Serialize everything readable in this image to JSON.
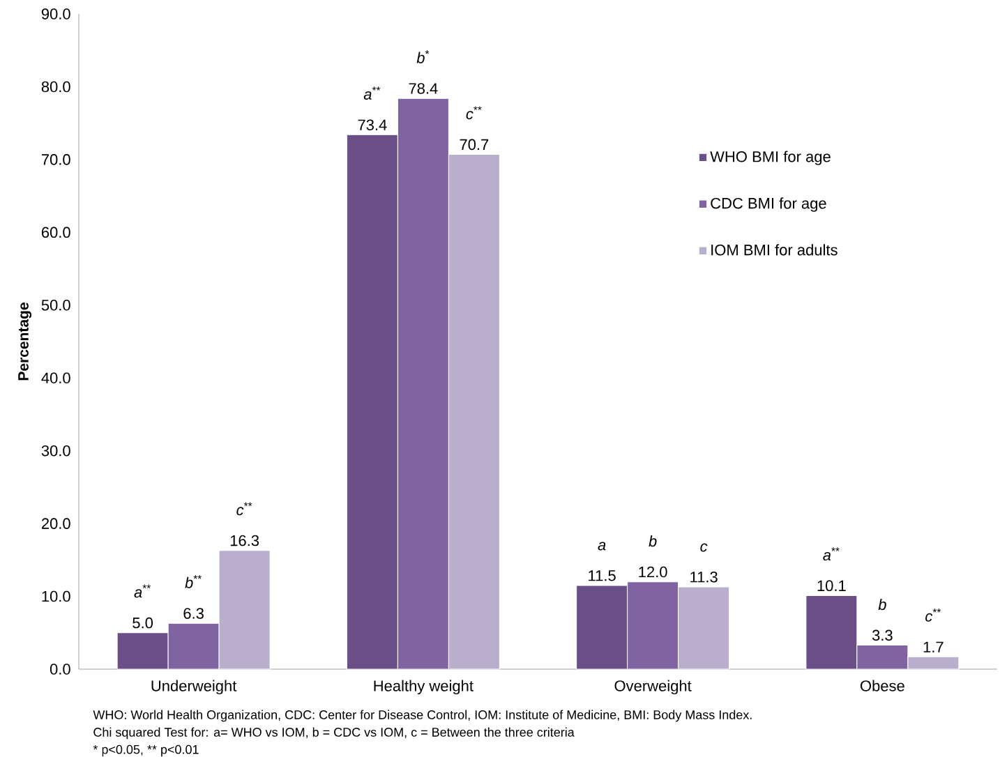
{
  "chart_data": {
    "type": "bar",
    "ylabel": "Percentage",
    "categories": [
      "Underweight",
      "Healthy weight",
      "Overweight",
      "Obese"
    ],
    "series": [
      {
        "name": "WHO BMI for age",
        "color": "#6b5088",
        "values": [
          5.0,
          73.4,
          11.5,
          10.1
        ],
        "value_labels": [
          "5.0",
          "73.4",
          "11.5",
          "10.1"
        ]
      },
      {
        "name": "CDC BMI for age",
        "color": "#8064a2",
        "values": [
          6.3,
          78.4,
          12.0,
          3.3
        ],
        "value_labels": [
          "6.3",
          "78.4",
          "12.0",
          "3.3"
        ]
      },
      {
        "name": "IOM BMI for adults",
        "color": "#b9afcc",
        "values": [
          16.3,
          70.7,
          11.3,
          1.7
        ],
        "value_labels": [
          "16.3",
          "70.7",
          "11.3",
          "1.7"
        ]
      }
    ],
    "ylim": [
      0,
      90
    ],
    "yticks": [
      {
        "value": 0,
        "label": "0.0"
      },
      {
        "value": 10,
        "label": "10.0"
      },
      {
        "value": 20,
        "label": "20.0"
      },
      {
        "value": 30,
        "label": "30.0"
      },
      {
        "value": 40,
        "label": "40.0"
      },
      {
        "value": 50,
        "label": "50.0"
      },
      {
        "value": 60,
        "label": "60.0"
      },
      {
        "value": 70,
        "label": "70.0"
      },
      {
        "value": 80,
        "label": "80.0"
      },
      {
        "value": 90,
        "label": "90.0"
      }
    ],
    "legend": "top right",
    "grid": false,
    "annotations": [
      "*a*$^{**}$",
      "*b*$^{**}$",
      "*c*$^{**}$",
      "*a*$^{**}$",
      "*b*$^{*}$",
      "*c*$^{**}$",
      "*a*",
      "*b*",
      "*c*",
      "*a*$^{**}$",
      "*b*",
      "*c*$^{**}$",
      "WHO: World Health Organization, CDC: Center for Disease Control, IOM: Institute of Medicine, BMI: Body Mass Index.",
      "Chi squared Test for: a= WHO vs IOM, b = CDC vs IOM, c = Between the three criteria",
      "* p<0.05, ** p<0.01"
    ]
  }
}
